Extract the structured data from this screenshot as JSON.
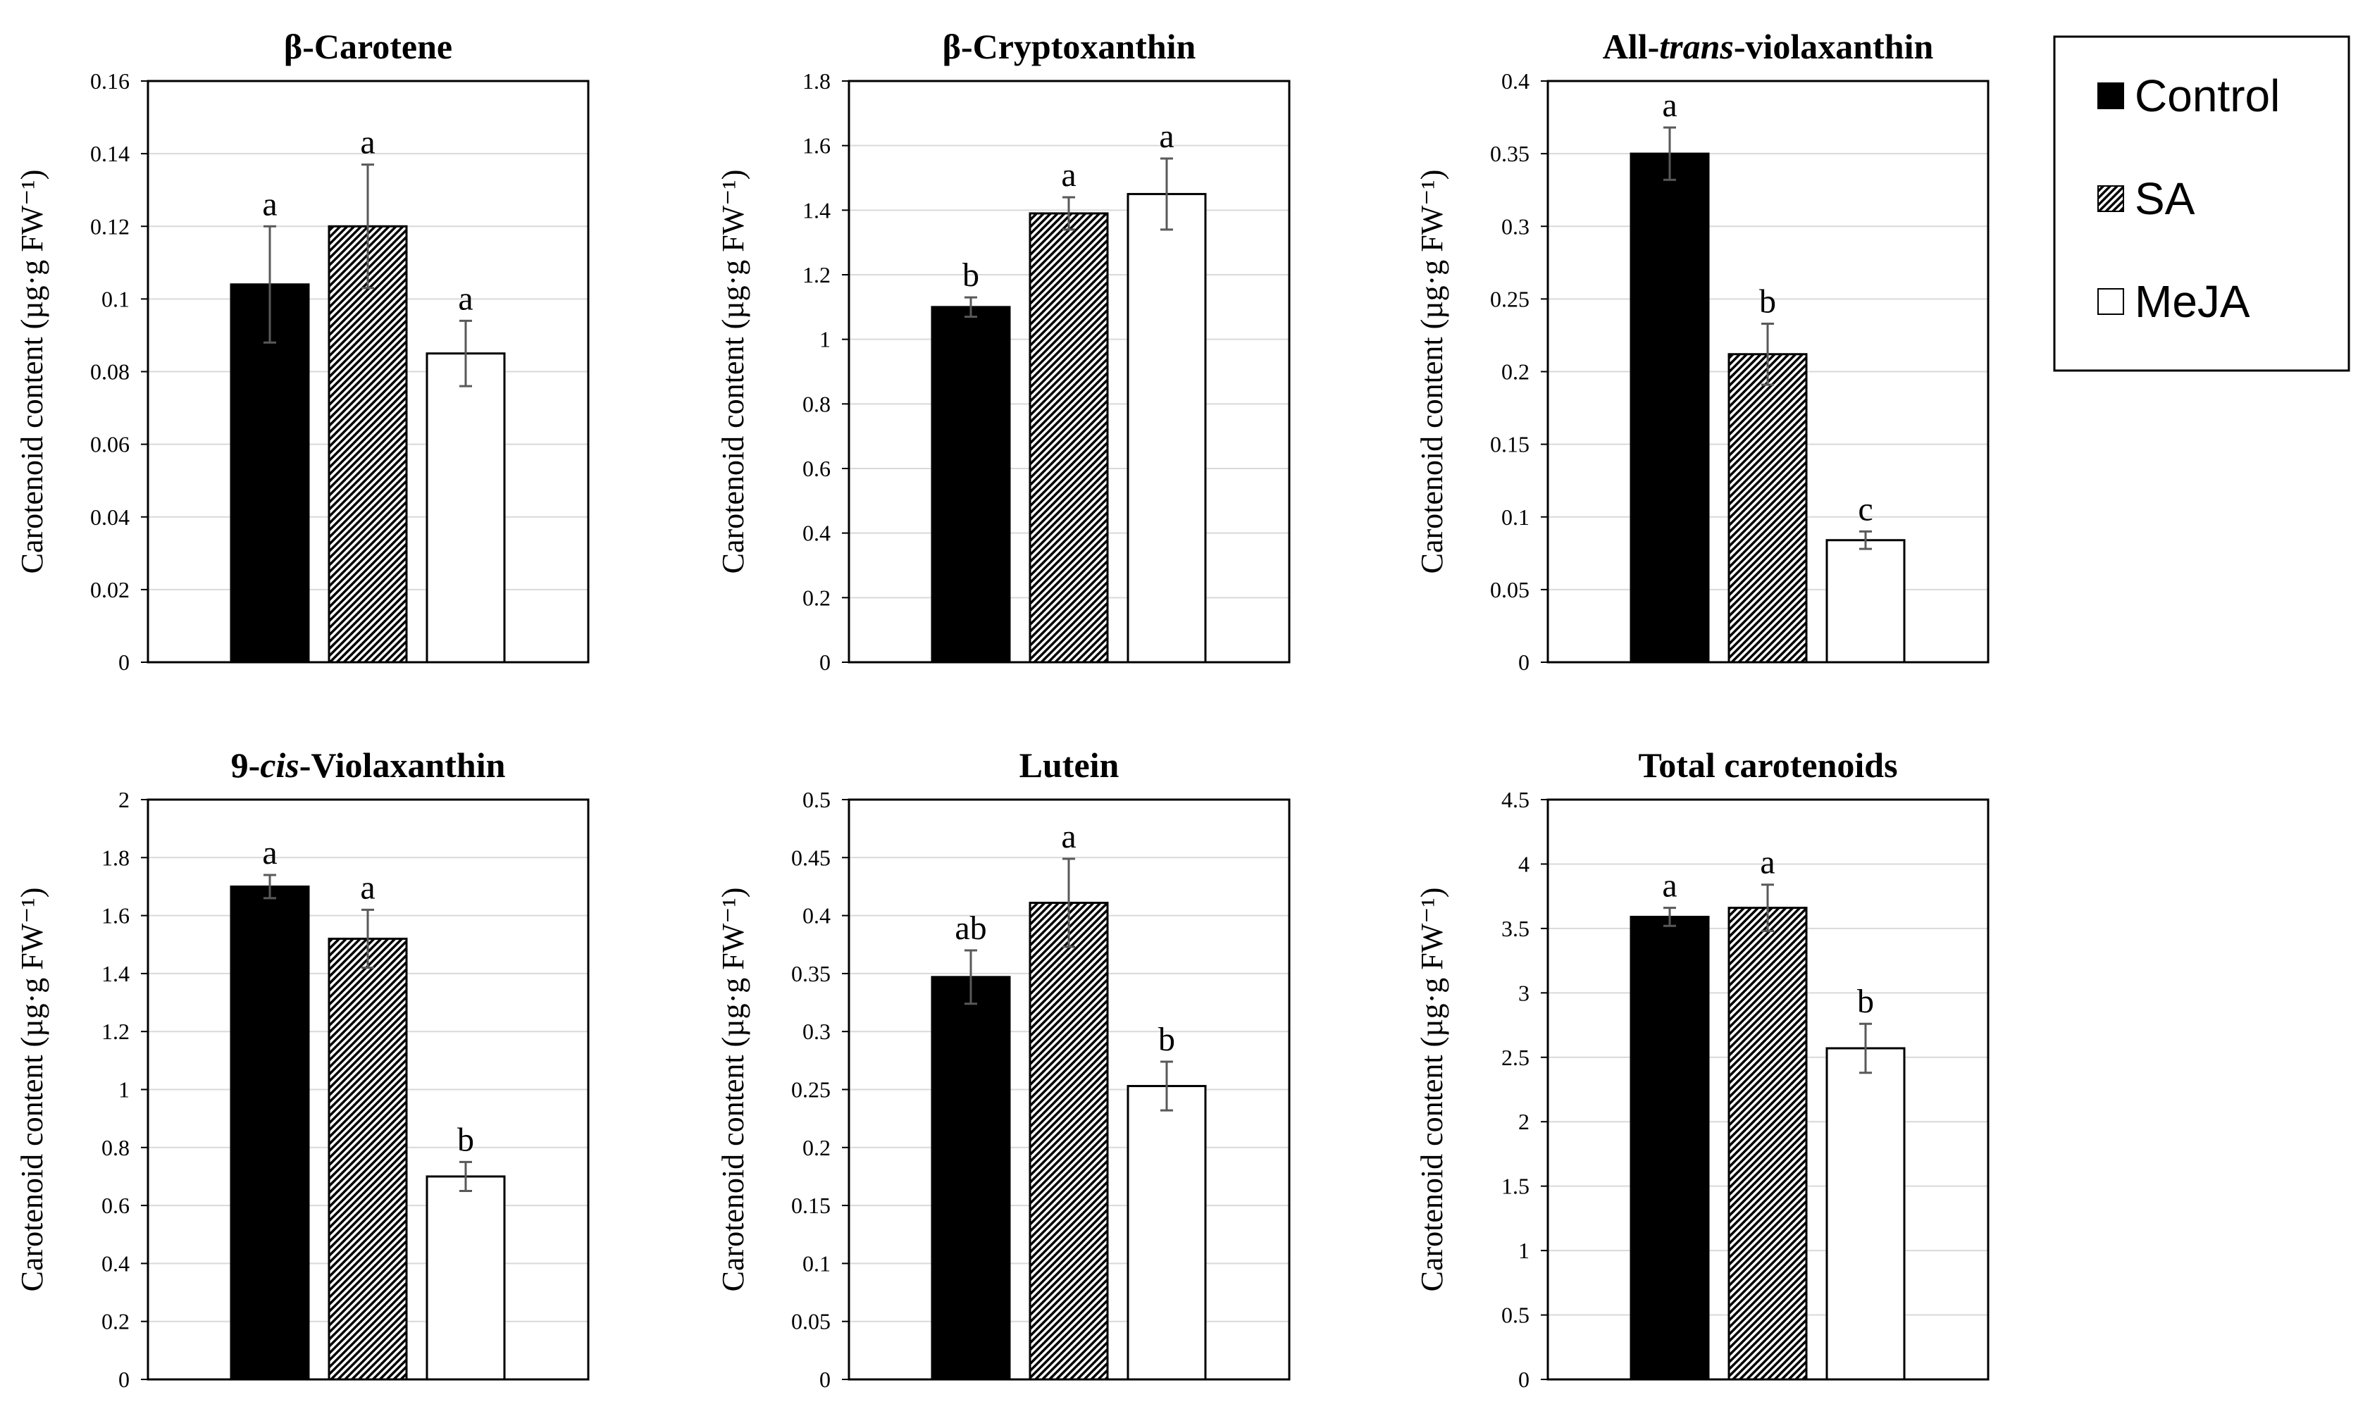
{
  "chart_data": [
    {
      "type": "bar",
      "title": "β-Carotene",
      "ylabel": "Carotenoid content (µg·g FW⁻¹)",
      "categories": [
        "Control",
        "SA",
        "MeJA"
      ],
      "values": [
        0.104,
        0.12,
        0.085
      ],
      "errors": [
        0.016,
        0.017,
        0.009
      ],
      "letters": [
        "a",
        "a",
        "a"
      ],
      "ylim": [
        0,
        0.16
      ],
      "yticks": [
        "0",
        "0.02",
        "0.04",
        "0.06",
        "0.08",
        "0.1",
        "0.12",
        "0.14",
        "0.16"
      ]
    },
    {
      "type": "bar",
      "title": "β-Cryptoxanthin",
      "ylabel": "Carotenoid content (µg·g FW⁻¹)",
      "categories": [
        "Control",
        "SA",
        "MeJA"
      ],
      "values": [
        1.1,
        1.39,
        1.45
      ],
      "errors": [
        0.03,
        0.05,
        0.11
      ],
      "letters": [
        "b",
        "a",
        "a"
      ],
      "ylim": [
        0,
        1.8
      ],
      "yticks": [
        "0",
        "0.2",
        "0.4",
        "0.6",
        "0.8",
        "1",
        "1.2",
        "1.4",
        "1.6",
        "1.8"
      ]
    },
    {
      "type": "bar",
      "title_parts": [
        "All-",
        "trans",
        "-violaxanthin"
      ],
      "ylabel": "Carotenoid content (µg·g FW⁻¹)",
      "categories": [
        "Control",
        "SA",
        "MeJA"
      ],
      "values": [
        0.35,
        0.212,
        0.084
      ],
      "errors": [
        0.018,
        0.021,
        0.006
      ],
      "letters": [
        "a",
        "b",
        "c"
      ],
      "ylim": [
        0,
        0.4
      ],
      "yticks": [
        "0",
        "0.05",
        "0.1",
        "0.15",
        "0.2",
        "0.25",
        "0.3",
        "0.35",
        "0.4"
      ]
    },
    {
      "type": "bar",
      "title_parts": [
        "9-",
        "cis",
        "-Violaxanthin"
      ],
      "ylabel": "Carotenoid content (µg·g FW⁻¹)",
      "categories": [
        "Control",
        "SA",
        "MeJA"
      ],
      "values": [
        1.7,
        1.52,
        0.7
      ],
      "errors": [
        0.04,
        0.1,
        0.05
      ],
      "letters": [
        "a",
        "a",
        "b"
      ],
      "ylim": [
        0,
        2
      ],
      "yticks": [
        "0",
        "0.2",
        "0.4",
        "0.6",
        "0.8",
        "1",
        "1.2",
        "1.4",
        "1.6",
        "1.8",
        "2"
      ]
    },
    {
      "type": "bar",
      "title": "Lutein",
      "ylabel": "Carotenoid content (µg·g FW⁻¹)",
      "categories": [
        "Control",
        "SA",
        "MeJA"
      ],
      "values": [
        0.347,
        0.411,
        0.253
      ],
      "errors": [
        0.023,
        0.038,
        0.021
      ],
      "letters": [
        "ab",
        "a",
        "b"
      ],
      "ylim": [
        0,
        0.5
      ],
      "yticks": [
        "0",
        "0.05",
        "0.1",
        "0.15",
        "0.2",
        "0.25",
        "0.3",
        "0.35",
        "0.4",
        "0.45",
        "0.5"
      ]
    },
    {
      "type": "bar",
      "title": "Total carotenoids",
      "ylabel": "Carotenoid content (µg·g FW⁻¹)",
      "categories": [
        "Control",
        "SA",
        "MeJA"
      ],
      "values": [
        3.59,
        3.66,
        2.57
      ],
      "errors": [
        0.07,
        0.18,
        0.19
      ],
      "letters": [
        "a",
        "a",
        "b"
      ],
      "ylim": [
        0,
        4.5
      ],
      "yticks": [
        "0",
        "0.5",
        "1",
        "1.5",
        "2",
        "2.5",
        "3",
        "3.5",
        "4",
        "4.5"
      ]
    }
  ],
  "legend": {
    "entries": [
      {
        "label": "Control",
        "fill": "solid"
      },
      {
        "label": "SA",
        "fill": "hatch"
      },
      {
        "label": "MeJA",
        "fill": "empty"
      }
    ]
  },
  "colors": {
    "bar": "#000000",
    "grid": "#d9d9d9",
    "axis": "#000000",
    "error": "#595959"
  }
}
